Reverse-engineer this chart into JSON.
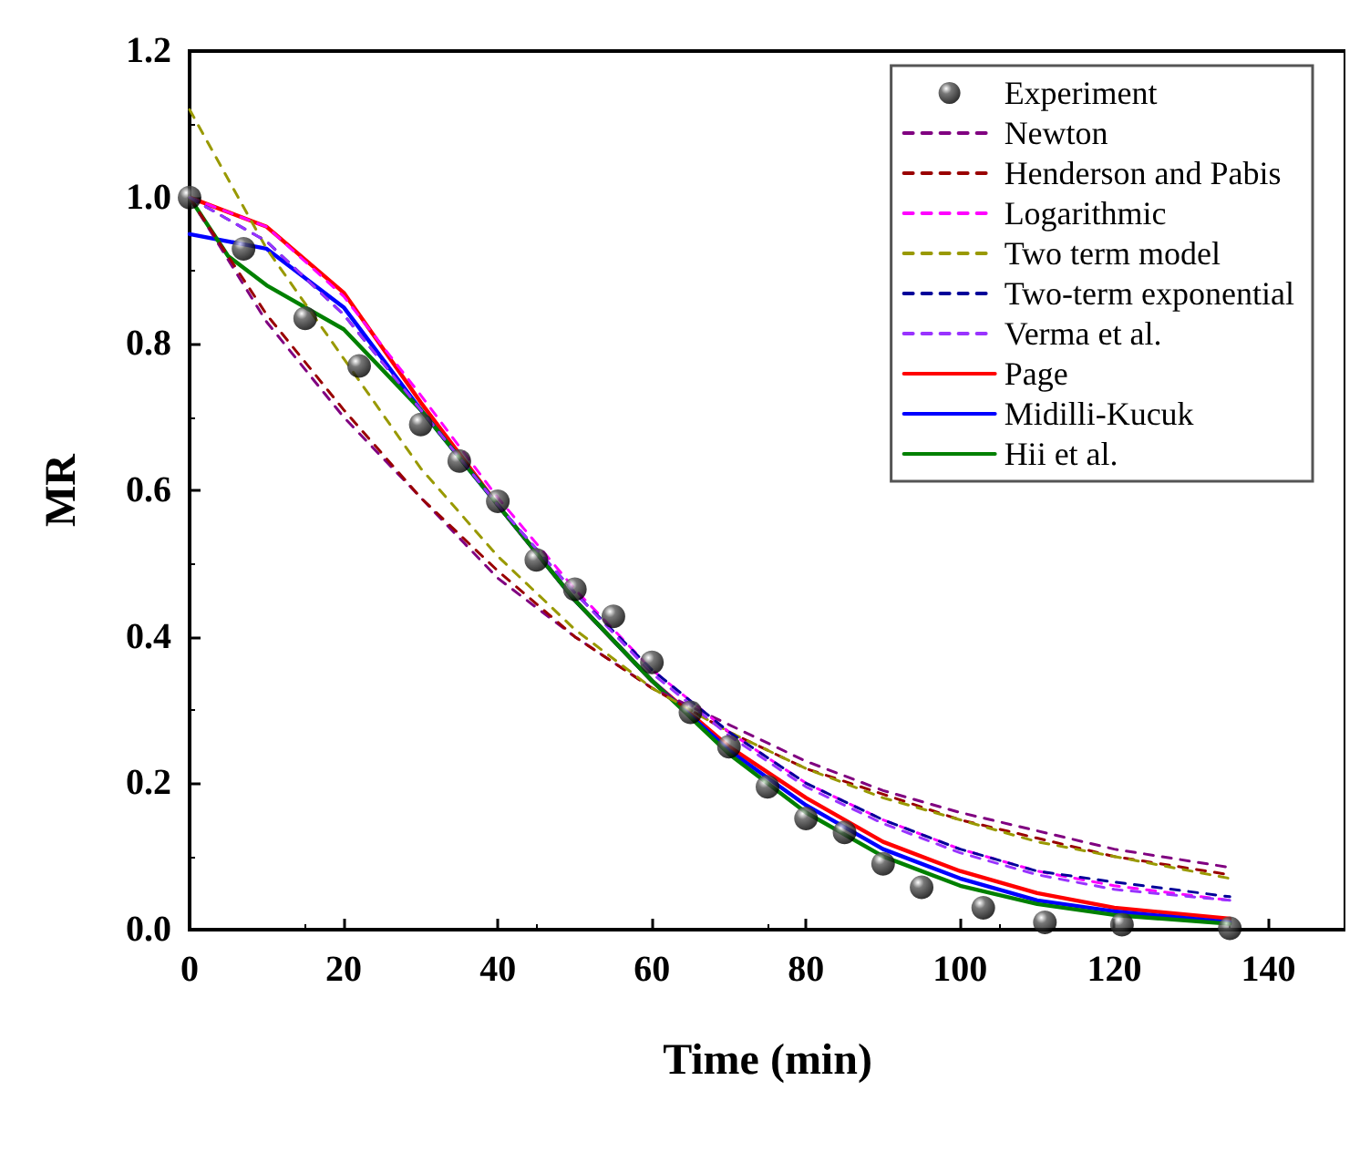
{
  "chart_data": {
    "type": "line",
    "xlabel": "Time (min)",
    "ylabel": "MR",
    "xlim": [
      0,
      150
    ],
    "xticks": [
      0,
      20,
      40,
      60,
      80,
      100,
      120,
      140
    ],
    "ylim": [
      0,
      1.2
    ],
    "yticks": [
      {
        "value": 0,
        "label": "0.0"
      },
      0.2,
      0.4,
      0.6,
      0.8,
      {
        "value": 1,
        "label": "1.0"
      },
      1.2
    ],
    "grid": false,
    "legend": "top right",
    "series": [
      {
        "name": "Experiment",
        "type": "scatter",
        "marker": "circle",
        "color": "#000000",
        "x": [
          0,
          7,
          15,
          22,
          30,
          35,
          40,
          45,
          50,
          55,
          60,
          65,
          70,
          75,
          80,
          85,
          90,
          95,
          103,
          111,
          121,
          135
        ],
        "values": [
          1.0,
          0.93,
          0.835,
          0.77,
          0.69,
          0.64,
          0.585,
          0.505,
          0.465,
          0.428,
          0.365,
          0.297,
          0.25,
          0.195,
          0.152,
          0.133,
          0.09,
          0.058,
          0.03,
          0.01,
          0.007,
          0.002
        ]
      },
      {
        "name": "Newton",
        "line_style": "dashed",
        "color": "#800080",
        "x": [
          0,
          10,
          20,
          30,
          40,
          50,
          60,
          70,
          80,
          90,
          100,
          110,
          120,
          135
        ],
        "values": [
          1.0,
          0.83,
          0.7,
          0.59,
          0.48,
          0.4,
          0.33,
          0.28,
          0.23,
          0.19,
          0.16,
          0.135,
          0.11,
          0.085
        ]
      },
      {
        "name": "Henderson and Pabis",
        "line_style": "dashed",
        "color": "#990000",
        "x": [
          0,
          10,
          20,
          30,
          40,
          50,
          60,
          70,
          80,
          90,
          100,
          110,
          120,
          135
        ],
        "values": [
          1.0,
          0.84,
          0.71,
          0.59,
          0.49,
          0.4,
          0.33,
          0.27,
          0.22,
          0.185,
          0.15,
          0.125,
          0.1,
          0.075
        ]
      },
      {
        "name": "Logarithmic",
        "line_style": "dashed",
        "color": "#ff00ff",
        "x": [
          0,
          10,
          20,
          30,
          40,
          50,
          60,
          70,
          80,
          90,
          100,
          110,
          120,
          135
        ],
        "values": [
          1.0,
          0.96,
          0.865,
          0.73,
          0.59,
          0.465,
          0.355,
          0.27,
          0.2,
          0.15,
          0.11,
          0.08,
          0.06,
          0.04
        ]
      },
      {
        "name": "Two term model",
        "line_style": "dashed",
        "color": "#999900",
        "x": [
          0,
          10,
          20,
          30,
          40,
          50,
          60,
          70,
          80,
          90,
          100,
          110,
          120,
          135
        ],
        "values": [
          1.12,
          0.93,
          0.78,
          0.63,
          0.51,
          0.41,
          0.33,
          0.27,
          0.22,
          0.18,
          0.15,
          0.12,
          0.1,
          0.07
        ]
      },
      {
        "name": "Two-term exponential",
        "line_style": "dashed",
        "color": "#000099",
        "x": [
          0,
          10,
          20,
          30,
          40,
          50,
          60,
          70,
          80,
          90,
          100,
          110,
          120,
          135
        ],
        "values": [
          1.0,
          0.94,
          0.84,
          0.71,
          0.58,
          0.46,
          0.355,
          0.27,
          0.2,
          0.15,
          0.11,
          0.08,
          0.065,
          0.045
        ]
      },
      {
        "name": "Verma et al.",
        "line_style": "dashed",
        "color": "#9933ff",
        "x": [
          0,
          10,
          20,
          30,
          40,
          50,
          60,
          70,
          80,
          90,
          100,
          110,
          120,
          135
        ],
        "values": [
          1.0,
          0.94,
          0.84,
          0.71,
          0.58,
          0.46,
          0.35,
          0.265,
          0.195,
          0.145,
          0.105,
          0.075,
          0.055,
          0.04
        ]
      },
      {
        "name": "Page",
        "line_style": "solid",
        "color": "#ff0000",
        "x": [
          0,
          10,
          20,
          30,
          40,
          50,
          60,
          70,
          80,
          90,
          100,
          110,
          120,
          135
        ],
        "values": [
          1.0,
          0.96,
          0.87,
          0.72,
          0.58,
          0.45,
          0.34,
          0.25,
          0.18,
          0.12,
          0.08,
          0.05,
          0.03,
          0.015
        ]
      },
      {
        "name": "Midilli-Kucuk",
        "line_style": "solid",
        "color": "#0000ff",
        "x": [
          0,
          10,
          20,
          30,
          40,
          50,
          60,
          70,
          80,
          90,
          100,
          110,
          120,
          135
        ],
        "values": [
          0.95,
          0.93,
          0.85,
          0.71,
          0.58,
          0.45,
          0.34,
          0.245,
          0.17,
          0.11,
          0.07,
          0.04,
          0.025,
          0.01
        ]
      },
      {
        "name": "Hii et al.",
        "line_style": "solid",
        "color": "#008000",
        "x": [
          0,
          5,
          10,
          20,
          30,
          40,
          50,
          60,
          70,
          80,
          90,
          100,
          110,
          120,
          135
        ],
        "values": [
          1.0,
          0.92,
          0.88,
          0.82,
          0.71,
          0.58,
          0.45,
          0.34,
          0.24,
          0.16,
          0.1,
          0.06,
          0.035,
          0.02,
          0.008
        ]
      }
    ]
  }
}
